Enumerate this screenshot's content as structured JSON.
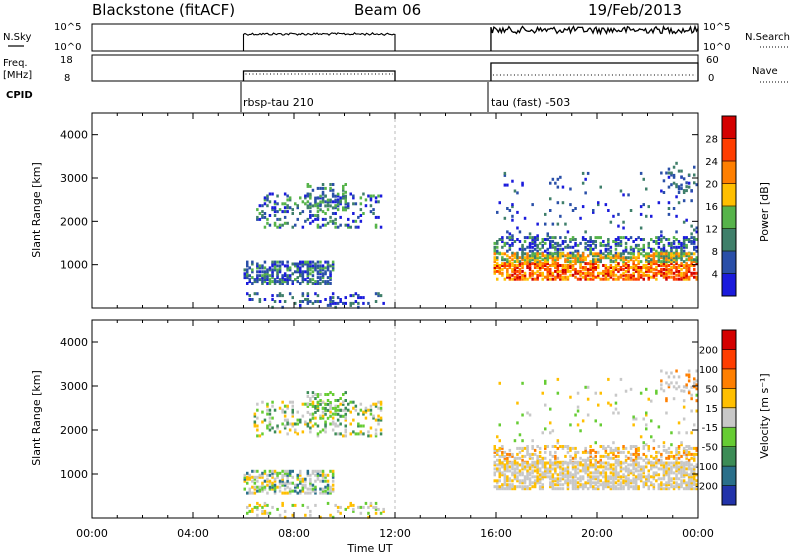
{
  "header": {
    "station": "Blackstone (fitACF)",
    "beam": "Beam 06",
    "date": "19/Feb/2013"
  },
  "chart_data": [
    {
      "type": "line",
      "panel": "noise",
      "left_label": "N.Sky",
      "right_label": "N.Search",
      "left_ticks": [
        "10^5",
        "10^0"
      ],
      "right_ticks": [
        "10^5",
        "10^0"
      ],
      "x_hours": [
        6.0,
        12.0,
        15.8,
        24.0
      ],
      "segments": [
        [
          6.0,
          12.0
        ],
        [
          15.8,
          24.0
        ]
      ]
    },
    {
      "type": "line",
      "panel": "frequency",
      "left_label": "Freq.",
      "left_unit": "[MHz]",
      "right_label": "Nave",
      "left_ticks": [
        "18",
        "8"
      ],
      "right_ticks": [
        "60",
        "0"
      ],
      "segments": [
        [
          6.0,
          12.0
        ],
        [
          15.8,
          24.0
        ]
      ]
    },
    {
      "type": "table",
      "panel": "cpid",
      "label": "CPID",
      "programs": [
        {
          "start": 6.0,
          "end": 12.0,
          "name": "rbsp-tau 210"
        },
        {
          "start": 15.8,
          "end": 24.0,
          "name": "tau (fast) -503"
        }
      ]
    },
    {
      "type": "heatmap",
      "panel": "power",
      "ylabel": "Slant Range [km]",
      "ylim": [
        0,
        4500
      ],
      "yticks": [
        1000,
        2000,
        3000,
        4000
      ],
      "xlim": [
        0,
        24
      ],
      "colorbar_label": "Power [dB]",
      "colorbar_ticks": [
        4,
        8,
        12,
        16,
        20,
        24,
        28
      ],
      "colorbar_colors": [
        "#1b1bdc",
        "#2a4fa8",
        "#3f7f6a",
        "#56b34a",
        "#ffbf00",
        "#ff7f00",
        "#ff3d00",
        "#d40000"
      ]
    },
    {
      "type": "heatmap",
      "panel": "velocity",
      "ylabel": "Slant Range [km]",
      "ylim": [
        0,
        4500
      ],
      "yticks": [
        1000,
        2000,
        3000,
        4000
      ],
      "xlim": [
        0,
        24
      ],
      "colorbar_label": "Velocity [m s⁻¹]",
      "colorbar_ticks": [
        200,
        100,
        50,
        15,
        -15,
        -50,
        -100,
        -200
      ],
      "colorbar_colors": [
        "#2233aa",
        "#2a6f8a",
        "#3c8c56",
        "#66cc33",
        "#c8c8c8",
        "#ffbf00",
        "#ff7f00",
        "#ff3d00",
        "#d40000"
      ]
    }
  ],
  "xaxis": {
    "label": "Time UT",
    "ticks": [
      "00:00",
      "04:00",
      "08:00",
      "12:00",
      "16:00",
      "20:00",
      "00:00"
    ]
  }
}
